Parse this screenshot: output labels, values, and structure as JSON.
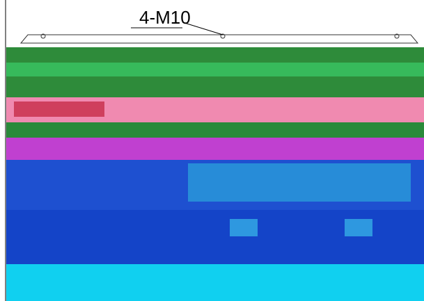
{
  "label": "4-M10"
}
